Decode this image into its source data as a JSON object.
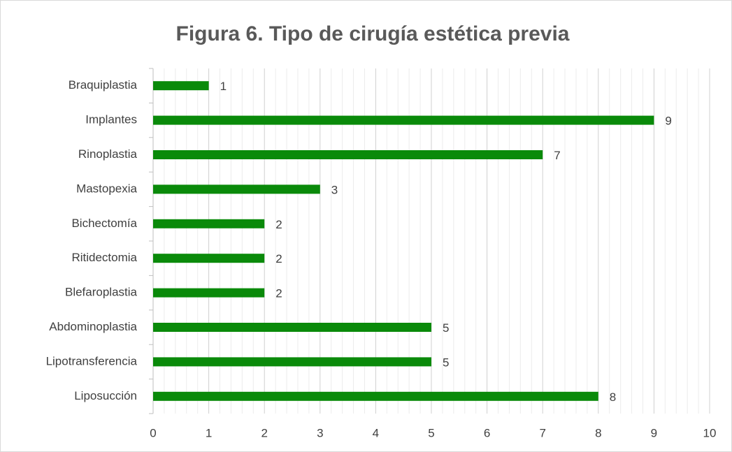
{
  "chart_data": {
    "type": "barh",
    "title": "Figura 6. Tipo de cirugía estética previa",
    "categories": [
      "Braquiplastia",
      "Implantes",
      "Rinoplastia",
      "Mastopexia",
      "Bichectomía",
      "Ritidectomia",
      "Blefaroplastia",
      "Abdominoplastia",
      "Lipotransferencia",
      "Liposucción"
    ],
    "values": [
      1,
      9,
      7,
      3,
      2,
      2,
      2,
      5,
      5,
      8
    ],
    "color": "#0a8a0a",
    "xlim": [
      0,
      10
    ],
    "xticks": [
      0,
      1,
      2,
      3,
      4,
      5,
      6,
      7,
      8,
      9,
      10
    ],
    "grid": true,
    "minor_divisions": 5
  }
}
